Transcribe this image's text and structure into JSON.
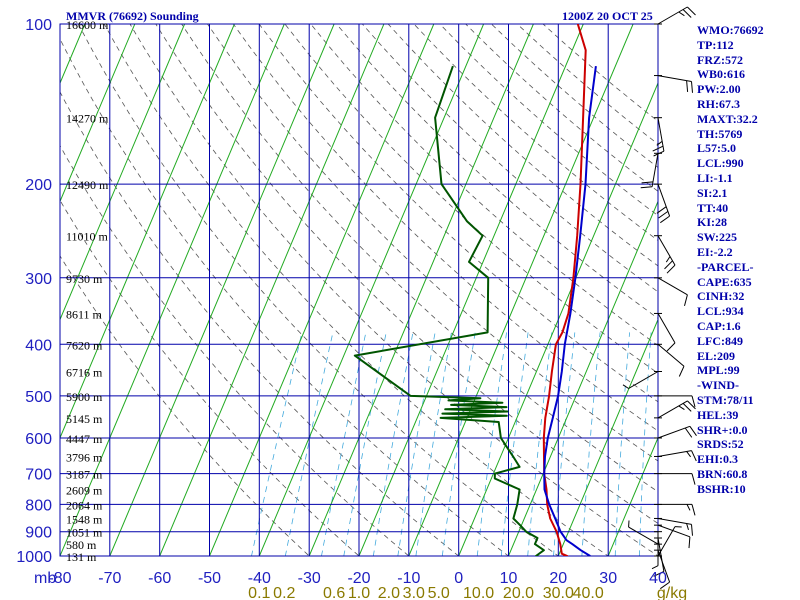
{
  "header": {
    "title_left": "MMVR (76692) Sounding",
    "title_right": "1200Z 20 OCT 25"
  },
  "indices": [
    "WMO:76692",
    "TP:112",
    "FRZ:572",
    "WB0:616",
    "PW:2.00",
    "RH:67.3",
    "MAXT:32.2",
    "TH:5769",
    "L57:5.0",
    "LCL:990",
    "LI:-1.1",
    "SI:2.1",
    "TT:40",
    "KI:28",
    "SW:225",
    "EI:-2.2",
    "-PARCEL-",
    "CAPE:635",
    "CINH:32",
    "LCL:934",
    "CAP:1.6",
    "LFC:849",
    "EL:209",
    "MPL:99",
    "-WIND-",
    "STM:78/11",
    "HEL:39",
    "SHR+:0.0",
    "SRDS:52",
    "EHI:0.3",
    "BRN:60.8",
    "BSHR:10"
  ],
  "colors": {
    "grid": "#0000aa",
    "isotherm": "#22aa22",
    "temperature": "#cc0000",
    "dewpoint": "#005500",
    "parcel": "#0000cc",
    "dry_adiabat": "#555555",
    "mixing_ratio": "#44aadd"
  },
  "chart_data": {
    "type": "line",
    "title": "MMVR (76692) Sounding",
    "subtitle": "1200Z 20 OCT 25",
    "pressure_unit_label": "mb",
    "mixing_ratio_unit_label": "g/kg",
    "pressure_levels": [
      100,
      200,
      300,
      400,
      500,
      600,
      700,
      800,
      900,
      1000
    ],
    "temperature_ticks": [
      -80,
      -70,
      -60,
      -50,
      -40,
      -30,
      -20,
      -10,
      0,
      10,
      20,
      30,
      40
    ],
    "temperature_tick_labels": [
      "-80",
      "-70",
      "-60",
      "-50",
      "-40",
      "-30",
      "-20",
      "-10",
      "0",
      "10",
      "20",
      "30",
      "40"
    ],
    "xlim": [
      -80,
      40
    ],
    "ylim": [
      1000,
      100
    ],
    "yscale": "log",
    "height_labels": [
      {
        "p": 100,
        "text": "16600 m"
      },
      {
        "p": 150,
        "text": "14270 m"
      },
      {
        "p": 200,
        "text": "12490 m"
      },
      {
        "p": 250,
        "text": "11010 m"
      },
      {
        "p": 300,
        "text": "9730 m"
      },
      {
        "p": 350,
        "text": "8611 m"
      },
      {
        "p": 400,
        "text": "7620 m"
      },
      {
        "p": 450,
        "text": "6716 m"
      },
      {
        "p": 500,
        "text": "5900 m"
      },
      {
        "p": 550,
        "text": "5145 m"
      },
      {
        "p": 600,
        "text": "4447 m"
      },
      {
        "p": 650,
        "text": "3796 m"
      },
      {
        "p": 700,
        "text": "3187 m"
      },
      {
        "p": 750,
        "text": "2609 m"
      },
      {
        "p": 800,
        "text": "2064 m"
      },
      {
        "p": 850,
        "text": "1548 m"
      },
      {
        "p": 900,
        "text": "1051 m"
      },
      {
        "p": 950,
        "text": "580 m"
      },
      {
        "p": 1000,
        "text": "131 m"
      }
    ],
    "mixing_ratio_labels": [
      {
        "text": "0.1",
        "t": -40
      },
      {
        "text": "0.2",
        "t": -35
      },
      {
        "text": "0.6",
        "t": -25
      },
      {
        "text": "1.0",
        "t": -20
      },
      {
        "text": "2.0",
        "t": -14
      },
      {
        "text": "3.0",
        "t": -9
      },
      {
        "text": "5.0",
        "t": -4
      },
      {
        "text": "10.0",
        "t": 4
      },
      {
        "text": "20.0",
        "t": 12
      },
      {
        "text": "30.0",
        "t": 20
      },
      {
        "text": "40.0",
        "t": 26
      }
    ],
    "series": [
      {
        "key": "temperature",
        "points": [
          {
            "p": 1008,
            "t": 20.0
          },
          {
            "p": 1000,
            "t": 21.8
          },
          {
            "p": 990,
            "t": 20.5
          },
          {
            "p": 950,
            "t": 19.4
          },
          {
            "p": 900,
            "t": 17.6
          },
          {
            "p": 850,
            "t": 15.2
          },
          {
            "p": 800,
            "t": 13.4
          },
          {
            "p": 750,
            "t": 12.0
          },
          {
            "p": 700,
            "t": 10.2
          },
          {
            "p": 650,
            "t": 8.7
          },
          {
            "p": 600,
            "t": 7.1
          },
          {
            "p": 550,
            "t": 5.7
          },
          {
            "p": 500,
            "t": 4.6
          },
          {
            "p": 450,
            "t": 3.1
          },
          {
            "p": 400,
            "t": 1.6
          },
          {
            "p": 380,
            "t": 1.9
          },
          {
            "p": 350,
            "t": 1.5
          },
          {
            "p": 300,
            "t": -0.5
          },
          {
            "p": 250,
            "t": -3.3
          },
          {
            "p": 200,
            "t": -7.0
          },
          {
            "p": 150,
            "t": -12.1
          },
          {
            "p": 112,
            "t": -17.3
          },
          {
            "p": 100,
            "t": -21.1
          }
        ]
      },
      {
        "key": "dewpoint",
        "points": [
          {
            "p": 1008,
            "t": 17.0
          },
          {
            "p": 1000,
            "t": 15.5
          },
          {
            "p": 975,
            "t": 16.6
          },
          {
            "p": 950,
            "t": 14.3
          },
          {
            "p": 925,
            "t": 14.3
          },
          {
            "p": 900,
            "t": 11.5
          },
          {
            "p": 875,
            "t": 9.7
          },
          {
            "p": 850,
            "t": 7.8
          },
          {
            "p": 800,
            "t": 7.4
          },
          {
            "p": 750,
            "t": 6.6
          },
          {
            "p": 715,
            "t": 0.7
          },
          {
            "p": 700,
            "t": 0.3
          },
          {
            "p": 680,
            "t": 4.7
          },
          {
            "p": 650,
            "t": 2.5
          },
          {
            "p": 600,
            "t": -1.5
          },
          {
            "p": 560,
            "t": -3.3
          },
          {
            "p": 550,
            "t": -15.3
          },
          {
            "p": 545,
            "t": -2.2
          },
          {
            "p": 540,
            "t": -15.3
          },
          {
            "p": 535,
            "t": -2.4
          },
          {
            "p": 530,
            "t": -15.1
          },
          {
            "p": 525,
            "t": -3.0
          },
          {
            "p": 520,
            "t": -14.3
          },
          {
            "p": 515,
            "t": -4.2
          },
          {
            "p": 510,
            "t": -15.2
          },
          {
            "p": 505,
            "t": -9.0
          },
          {
            "p": 500,
            "t": -23.2
          },
          {
            "p": 420,
            "t": -37.8
          },
          {
            "p": 380,
            "t": -13.1
          },
          {
            "p": 300,
            "t": -17.6
          },
          {
            "p": 280,
            "t": -22.8
          },
          {
            "p": 250,
            "t": -22.3
          },
          {
            "p": 235,
            "t": -26.6
          },
          {
            "p": 200,
            "t": -34.9
          },
          {
            "p": 150,
            "t": -41.8
          },
          {
            "p": 120,
            "t": -42.6
          }
        ]
      },
      {
        "key": "parcel",
        "points": [
          {
            "p": 1000,
            "t": 26.4
          },
          {
            "p": 975,
            "t": 24.0
          },
          {
            "p": 950,
            "t": 21.8
          },
          {
            "p": 934,
            "t": 20.3
          },
          {
            "p": 900,
            "t": 18.4
          },
          {
            "p": 850,
            "t": 16.2
          },
          {
            "p": 800,
            "t": 13.8
          },
          {
            "p": 750,
            "t": 11.6
          },
          {
            "p": 700,
            "t": 10.2
          },
          {
            "p": 650,
            "t": 8.9
          },
          {
            "p": 600,
            "t": 7.9
          },
          {
            "p": 550,
            "t": 7.2
          },
          {
            "p": 500,
            "t": 6.4
          },
          {
            "p": 450,
            "t": 5.1
          },
          {
            "p": 400,
            "t": 3.4
          },
          {
            "p": 350,
            "t": 1.9
          },
          {
            "p": 300,
            "t": -0.1
          },
          {
            "p": 250,
            "t": -2.7
          },
          {
            "p": 200,
            "t": -6.0
          },
          {
            "p": 150,
            "t": -10.9
          },
          {
            "p": 120,
            "t": -13.9
          }
        ]
      }
    ],
    "wind_barbs": [
      {
        "p": 1000,
        "dir": 30,
        "spd": 5
      },
      {
        "p": 975,
        "dir": 160,
        "spd": 10
      },
      {
        "p": 950,
        "dir": 300,
        "spd": 5
      },
      {
        "p": 925,
        "dir": 170,
        "spd": 10
      },
      {
        "p": 900,
        "dir": 180,
        "spd": 5
      },
      {
        "p": 875,
        "dir": 110,
        "spd": 10
      },
      {
        "p": 850,
        "dir": 100,
        "spd": 15
      },
      {
        "p": 800,
        "dir": 90,
        "spd": 15
      },
      {
        "p": 700,
        "dir": 90,
        "spd": 10
      },
      {
        "p": 650,
        "dir": 80,
        "spd": 15
      },
      {
        "p": 600,
        "dir": 70,
        "spd": 20
      },
      {
        "p": 550,
        "dir": 60,
        "spd": 25
      },
      {
        "p": 500,
        "dir": 90,
        "spd": 10
      },
      {
        "p": 450,
        "dir": 240,
        "spd": 5
      },
      {
        "p": 400,
        "dir": 130,
        "spd": 10
      },
      {
        "p": 350,
        "dir": 150,
        "spd": 10
      },
      {
        "p": 300,
        "dir": 120,
        "spd": 10
      },
      {
        "p": 250,
        "dir": 150,
        "spd": 25
      },
      {
        "p": 200,
        "dir": 160,
        "spd": 30
      },
      {
        "p": 175,
        "dir": 190,
        "spd": 20
      },
      {
        "p": 150,
        "dir": 170,
        "spd": 25
      },
      {
        "p": 125,
        "dir": 100,
        "spd": 20
      },
      {
        "p": 100,
        "dir": 60,
        "spd": 25
      }
    ],
    "grid": true,
    "legend": "none"
  }
}
